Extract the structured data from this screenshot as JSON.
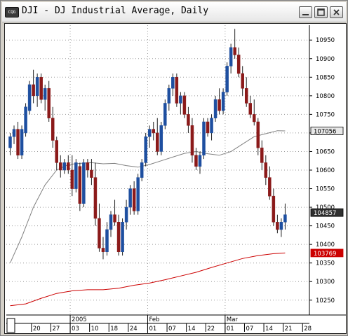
{
  "window": {
    "icon_label": "CQG",
    "title": "DJI - DJ Industrial Average, Daily",
    "buttons": {
      "minimize": "minimize-icon",
      "maximize": "maximize-icon",
      "close": "close-icon"
    }
  },
  "colors": {
    "up": "#1e4fa0",
    "down": "#8b1a1a",
    "ma_short": "#808080",
    "ma_long": "#cc0000",
    "grid": "#9a9a9a"
  },
  "chart_data": {
    "type": "candlestick",
    "title": "",
    "ylim": [
      10210,
      10990
    ],
    "y_ticks": [
      10250,
      10300,
      10350,
      10400,
      10450,
      10500,
      10550,
      10600,
      10650,
      10700,
      10750,
      10800,
      10850,
      10900,
      10950
    ],
    "x_labels": [
      {
        "label": "20",
        "i": 6
      },
      {
        "label": "27",
        "i": 11
      },
      {
        "label": "03",
        "i": 16
      },
      {
        "label": "10",
        "i": 21
      },
      {
        "label": "18",
        "i": 26
      },
      {
        "label": "24",
        "i": 31
      },
      {
        "label": "01",
        "i": 36
      },
      {
        "label": "07",
        "i": 41
      },
      {
        "label": "14",
        "i": 46
      },
      {
        "label": "22",
        "i": 51
      },
      {
        "label": "01",
        "i": 56
      },
      {
        "label": "07",
        "i": 61
      },
      {
        "label": "14",
        "i": 66
      },
      {
        "label": "21",
        "i": 71
      },
      {
        "label": "28",
        "i": 76
      }
    ],
    "period_labels": [
      {
        "label": "2005",
        "i": 16
      },
      {
        "label": "Feb",
        "i": 36
      },
      {
        "label": "Mar",
        "i": 56
      }
    ],
    "price_labels": [
      {
        "value": 10705.6,
        "label": "107056",
        "style": "ma"
      },
      {
        "value": 10485.7,
        "label": "104857",
        "style": "last"
      },
      {
        "value": 10376.9,
        "label": "103769",
        "style": "long"
      }
    ],
    "candles": [
      [
        10660,
        10700,
        10640,
        10690
      ],
      [
        10690,
        10720,
        10670,
        10710
      ],
      [
        10710,
        10730,
        10630,
        10640
      ],
      [
        10640,
        10720,
        10630,
        10710
      ],
      [
        10700,
        10780,
        10690,
        10770
      ],
      [
        10760,
        10840,
        10750,
        10830
      ],
      [
        10830,
        10870,
        10780,
        10800
      ],
      [
        10800,
        10860,
        10770,
        10850
      ],
      [
        10850,
        10860,
        10780,
        10790
      ],
      [
        10790,
        10830,
        10760,
        10820
      ],
      [
        10820,
        10840,
        10730,
        10740
      ],
      [
        10740,
        10770,
        10660,
        10680
      ],
      [
        10680,
        10690,
        10600,
        10620
      ],
      [
        10620,
        10640,
        10580,
        10600
      ],
      [
        10600,
        10630,
        10590,
        10620
      ],
      [
        10620,
        10640,
        10590,
        10600
      ],
      [
        10600,
        10640,
        10530,
        10550
      ],
      [
        10550,
        10630,
        10540,
        10620
      ],
      [
        10610,
        10620,
        10490,
        10510
      ],
      [
        10510,
        10630,
        10500,
        10620
      ],
      [
        10620,
        10630,
        10580,
        10600
      ],
      [
        10600,
        10630,
        10560,
        10580
      ],
      [
        10580,
        10620,
        10450,
        10470
      ],
      [
        10470,
        10510,
        10380,
        10390
      ],
      [
        10390,
        10420,
        10360,
        10380
      ],
      [
        10380,
        10460,
        10370,
        10440
      ],
      [
        10440,
        10490,
        10420,
        10480
      ],
      [
        10480,
        10520,
        10450,
        10460
      ],
      [
        10460,
        10480,
        10370,
        10380
      ],
      [
        10380,
        10470,
        10370,
        10460
      ],
      [
        10460,
        10520,
        10440,
        10500
      ],
      [
        10500,
        10560,
        10480,
        10550
      ],
      [
        10550,
        10570,
        10480,
        10490
      ],
      [
        10490,
        10590,
        10480,
        10580
      ],
      [
        10580,
        10630,
        10570,
        10620
      ],
      [
        10620,
        10700,
        10610,
        10690
      ],
      [
        10690,
        10720,
        10660,
        10710
      ],
      [
        10710,
        10730,
        10680,
        10700
      ],
      [
        10700,
        10740,
        10640,
        10650
      ],
      [
        10650,
        10730,
        10640,
        10720
      ],
      [
        10720,
        10790,
        10710,
        10780
      ],
      [
        10780,
        10830,
        10760,
        10820
      ],
      [
        10820,
        10860,
        10800,
        10850
      ],
      [
        10850,
        10860,
        10770,
        10780
      ],
      [
        10780,
        10810,
        10750,
        10800
      ],
      [
        10800,
        10810,
        10740,
        10750
      ],
      [
        10750,
        10770,
        10700,
        10720
      ],
      [
        10720,
        10740,
        10620,
        10640
      ],
      [
        10640,
        10660,
        10600,
        10610
      ],
      [
        10610,
        10650,
        10590,
        10640
      ],
      [
        10640,
        10740,
        10630,
        10730
      ],
      [
        10730,
        10740,
        10690,
        10700
      ],
      [
        10700,
        10750,
        10680,
        10740
      ],
      [
        10740,
        10800,
        10730,
        10790
      ],
      [
        10790,
        10820,
        10750,
        10760
      ],
      [
        10760,
        10820,
        10750,
        10810
      ],
      [
        10810,
        10890,
        10800,
        10880
      ],
      [
        10880,
        10940,
        10860,
        10930
      ],
      [
        10930,
        10980,
        10900,
        10910
      ],
      [
        10910,
        10930,
        10850,
        10860
      ],
      [
        10860,
        10880,
        10800,
        10820
      ],
      [
        10820,
        10850,
        10770,
        10780
      ],
      [
        10780,
        10800,
        10740,
        10750
      ],
      [
        10750,
        10790,
        10720,
        10730
      ],
      [
        10730,
        10740,
        10640,
        10660
      ],
      [
        10660,
        10680,
        10600,
        10620
      ],
      [
        10620,
        10640,
        10560,
        10580
      ],
      [
        10580,
        10610,
        10520,
        10530
      ],
      [
        10530,
        10550,
        10450,
        10460
      ],
      [
        10460,
        10480,
        10430,
        10440
      ],
      [
        10440,
        10470,
        10420,
        10460
      ],
      [
        10460,
        10510,
        10440,
        10480
      ]
    ],
    "ma_short": [
      [
        0,
        10350
      ],
      [
        3,
        10420
      ],
      [
        6,
        10500
      ],
      [
        9,
        10560
      ],
      [
        12,
        10600
      ],
      [
        15,
        10615
      ],
      [
        18,
        10618
      ],
      [
        21,
        10620
      ],
      [
        24,
        10617
      ],
      [
        27,
        10618
      ],
      [
        30,
        10612
      ],
      [
        33,
        10608
      ],
      [
        36,
        10615
      ],
      [
        39,
        10625
      ],
      [
        42,
        10635
      ],
      [
        45,
        10645
      ],
      [
        48,
        10650
      ],
      [
        51,
        10644
      ],
      [
        54,
        10640
      ],
      [
        57,
        10650
      ],
      [
        60,
        10670
      ],
      [
        63,
        10690
      ],
      [
        66,
        10698
      ],
      [
        69,
        10706
      ],
      [
        71,
        10705.6
      ]
    ],
    "ma_long": [
      [
        0,
        10235
      ],
      [
        4,
        10240
      ],
      [
        8,
        10255
      ],
      [
        12,
        10268
      ],
      [
        16,
        10275
      ],
      [
        20,
        10278
      ],
      [
        24,
        10278
      ],
      [
        28,
        10282
      ],
      [
        32,
        10290
      ],
      [
        36,
        10296
      ],
      [
        40,
        10305
      ],
      [
        44,
        10315
      ],
      [
        48,
        10325
      ],
      [
        52,
        10338
      ],
      [
        56,
        10350
      ],
      [
        60,
        10362
      ],
      [
        64,
        10370
      ],
      [
        68,
        10375
      ],
      [
        71,
        10376.9
      ]
    ]
  }
}
